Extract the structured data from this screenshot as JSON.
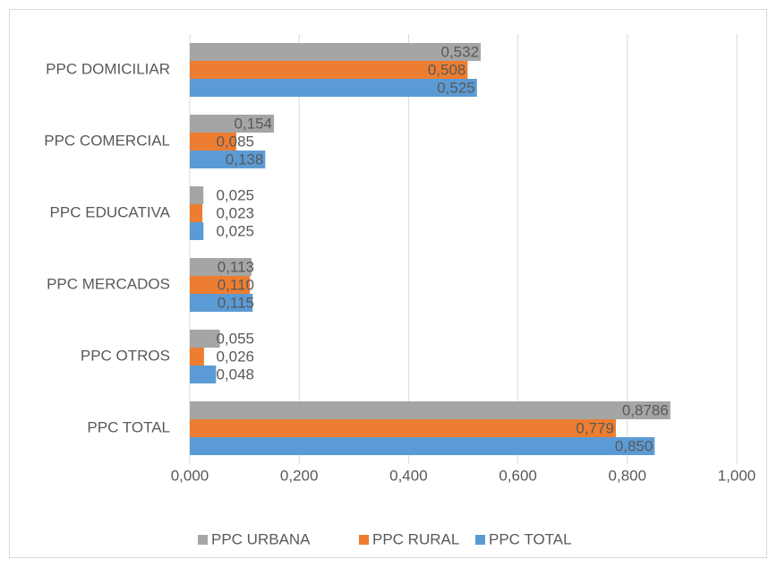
{
  "chart_data": {
    "type": "hbar",
    "categories": [
      "PPC DOMICILIAR",
      "PPC COMERCIAL",
      "PPC EDUCATIVA",
      "PPC MERCADOS",
      "PPC OTROS",
      "PPC TOTAL"
    ],
    "series": [
      {
        "name": "PPC URBANA",
        "color": "#a5a5a5",
        "values": [
          0.532,
          0.154,
          0.025,
          0.113,
          0.055,
          0.8786
        ],
        "value_labels": [
          "0,532",
          "0,154",
          "0,025",
          "0,113",
          "0,055",
          "0,8786"
        ]
      },
      {
        "name": "PPC RURAL",
        "color": "#ed7d31",
        "values": [
          0.508,
          0.085,
          0.023,
          0.11,
          0.026,
          0.779
        ],
        "value_labels": [
          "0,508",
          "0,085",
          "0,023",
          "0,110",
          "0,026",
          "0,779"
        ]
      },
      {
        "name": "PPC TOTAL",
        "color": "#5b9bd5",
        "values": [
          0.525,
          0.138,
          0.025,
          0.115,
          0.048,
          0.85
        ],
        "value_labels": [
          "0,525",
          "0,138",
          "0,025",
          "0,115",
          "0,048",
          "0,850"
        ]
      }
    ],
    "xlim": [
      0,
      1
    ],
    "xticks": [
      {
        "value": 0,
        "label": "0,000"
      },
      {
        "value": 0.2,
        "label": "0,200"
      },
      {
        "value": 0.4,
        "label": "0,400"
      },
      {
        "value": 0.6,
        "label": "0,600"
      },
      {
        "value": 0.8,
        "label": "0,800"
      },
      {
        "value": 1,
        "label": "1,000"
      }
    ],
    "grid": true,
    "legend": "bottom"
  }
}
